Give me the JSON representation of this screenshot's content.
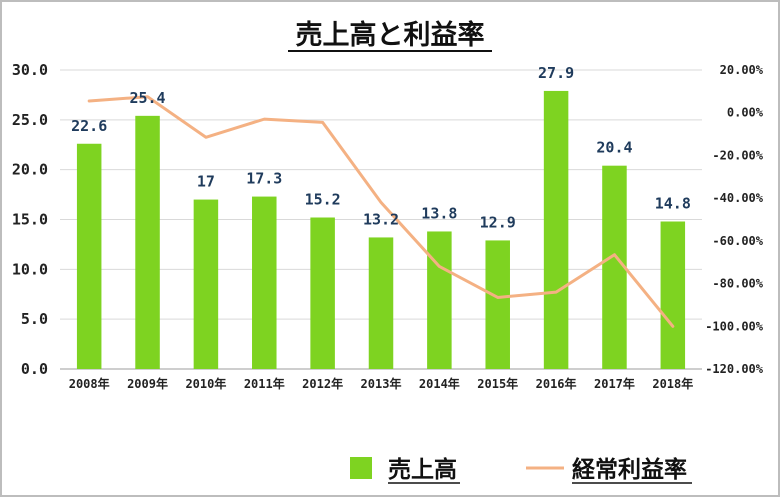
{
  "chart_data": {
    "type": "bar",
    "title": "売上高と利益率",
    "categories": [
      "2008年",
      "2009年",
      "2010年",
      "2011年",
      "2012年",
      "2013年",
      "2014年",
      "2015年",
      "2016年",
      "2017年",
      "2018年"
    ],
    "series": [
      {
        "name": "売上高",
        "type": "bar",
        "axis": "left",
        "color": "#7ed321",
        "values": [
          22.6,
          25.4,
          17,
          17.3,
          15.2,
          13.2,
          13.8,
          12.9,
          27.9,
          20.4,
          14.8
        ],
        "labels": [
          "22.6",
          "25.4",
          "17",
          "17.3",
          "15.2",
          "13.2",
          "13.8",
          "12.9",
          "27.9",
          "20.4",
          "14.8"
        ]
      },
      {
        "name": "経常利益率",
        "type": "line",
        "axis": "right",
        "color": "#f4b183",
        "values": [
          5.5,
          7.5,
          -11.5,
          -3,
          -4.5,
          -42,
          -72,
          -86.5,
          -84,
          -66.5,
          -100
        ]
      }
    ],
    "y_left": {
      "min": 0,
      "max": 30,
      "ticks": [
        0,
        5,
        10,
        15,
        20,
        25,
        30
      ],
      "tick_labels": [
        "0.0",
        "5.0",
        "10.0",
        "15.0",
        "20.0",
        "25.0",
        "30.0"
      ]
    },
    "y_right": {
      "min": -120,
      "max": 20,
      "ticks": [
        20,
        0,
        -20,
        -40,
        -60,
        -80,
        -100,
        -120
      ],
      "tick_labels": [
        "20.00%",
        "0.00%",
        "-20.00%",
        "-40.00%",
        "-60.00%",
        "-80.00%",
        "-100.00%",
        "-120.00%"
      ],
      "unit": "percent"
    },
    "grid": true,
    "legend_position": "bottom-right"
  }
}
